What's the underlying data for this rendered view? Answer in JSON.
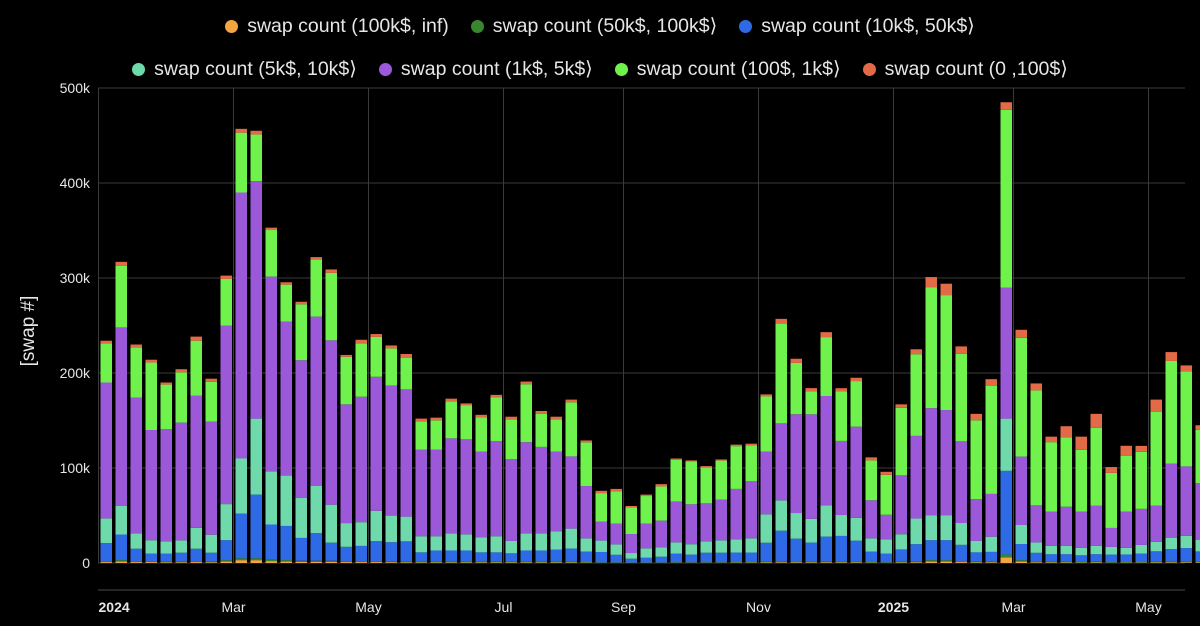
{
  "chart_data": {
    "type": "bar",
    "stacked": true,
    "ylabel": "[swap #]",
    "ylim": [
      0,
      500000
    ],
    "yticks": [
      0,
      100000,
      200000,
      300000,
      400000,
      500000
    ],
    "ytick_labels": [
      "0",
      "100k",
      "200k",
      "300k",
      "400k",
      "500k"
    ],
    "xticks": [
      {
        "label": "2024",
        "bold": true,
        "after_bar": 0
      },
      {
        "label": "Mar",
        "bold": false,
        "after_bar": 9
      },
      {
        "label": "May",
        "bold": false,
        "after_bar": 18
      },
      {
        "label": "Jul",
        "bold": false,
        "after_bar": 27
      },
      {
        "label": "Sep",
        "bold": false,
        "after_bar": 35
      },
      {
        "label": "Nov",
        "bold": false,
        "after_bar": 44
      },
      {
        "label": "2025",
        "bold": true,
        "after_bar": 53
      },
      {
        "label": "Mar",
        "bold": false,
        "after_bar": 61
      },
      {
        "label": "May",
        "bold": false,
        "after_bar": 70
      }
    ],
    "grid": true,
    "legend_position": "top",
    "series": [
      {
        "name": "swap count (100k$, inf)",
        "color": "#f5a540"
      },
      {
        "name": "swap count (50k$, 100k$⟩",
        "color": "#37872d"
      },
      {
        "name": "swap count (10k$, 50k$⟩",
        "color": "#2e6ae5"
      },
      {
        "name": "swap count (5k$, 10k$⟩",
        "color": "#6ed9ab"
      },
      {
        "name": "swap count (1k$, 5k$⟩",
        "color": "#9b59d9"
      },
      {
        "name": "swap count (100$, 1k$⟩",
        "color": "#70f24d"
      },
      {
        "name": "swap count (0 ,100$⟩",
        "color": "#e26a47"
      }
    ],
    "totals": [
      234000,
      317000,
      230000,
      214000,
      190000,
      204000,
      238000,
      194000,
      303000,
      457000,
      455000,
      353000,
      296000,
      275000,
      322000,
      308000,
      219000,
      235000,
      241000,
      230000,
      220000,
      152000,
      153000,
      173000,
      169000,
      156000,
      177000,
      154000,
      191000,
      160000,
      154000,
      172000,
      130000,
      76000,
      78000,
      61000,
      73000,
      84000,
      111000,
      109000,
      103000,
      110000,
      126000,
      127000,
      181000,
      259000,
      216000,
      186000,
      243000,
      185000,
      196000,
      112000,
      97000,
      168000,
      229000,
      302000,
      294000,
      235000,
      158000,
      197000,
      485000,
      246000,
      194000,
      141000,
      148000,
      133000,
      157000,
      102000,
      124000,
      124000,
      173000,
      222000,
      212000,
      146000,
      134000,
      61000
    ],
    "layer_values": {
      "100k_inf": [
        1000,
        1500,
        1000,
        1000,
        800,
        800,
        1000,
        800,
        1500,
        3000,
        3000,
        2000,
        1500,
        1200,
        1200,
        1200,
        1000,
        1000,
        1000,
        900,
        800,
        500,
        500,
        500,
        500,
        500,
        500,
        500,
        500,
        500,
        500,
        500,
        400,
        200,
        200,
        200,
        200,
        200,
        300,
        300,
        300,
        300,
        400,
        400,
        500,
        800,
        600,
        600,
        800,
        600,
        600,
        400,
        300,
        500,
        800,
        1500,
        1500,
        1000,
        500,
        800,
        6000,
        1500,
        800,
        500,
        500,
        400,
        500,
        300,
        400,
        400,
        500,
        700,
        700,
        500,
        400,
        200
      ],
      "50k_100k": [
        1000,
        1500,
        1000,
        1000,
        1000,
        1000,
        1000,
        1000,
        1500,
        2000,
        2000,
        1500,
        1500,
        1200,
        1200,
        1200,
        1000,
        1000,
        1000,
        1000,
        1000,
        700,
        700,
        700,
        700,
        700,
        700,
        700,
        700,
        700,
        700,
        700,
        600,
        400,
        400,
        300,
        300,
        400,
        500,
        500,
        500,
        500,
        600,
        600,
        800,
        1200,
        1000,
        900,
        1000,
        900,
        900,
        600,
        500,
        800,
        1000,
        1500,
        1500,
        1100,
        700,
        900,
        3000,
        1500,
        900,
        700,
        700,
        700,
        700,
        600,
        600,
        600,
        800,
        1000,
        1000,
        700,
        600,
        300
      ],
      "10k_50k": [
        19000,
        27000,
        13000,
        8000,
        8000,
        9000,
        13000,
        9000,
        21000,
        47000,
        67000,
        37000,
        36000,
        24000,
        29000,
        19000,
        15000,
        16000,
        21000,
        20000,
        21000,
        10000,
        12000,
        12000,
        12000,
        10000,
        10000,
        9000,
        12000,
        12000,
        13000,
        14000,
        11000,
        11000,
        8000,
        4000,
        5000,
        6000,
        9000,
        8000,
        10000,
        10000,
        10000,
        10000,
        20000,
        32000,
        24000,
        20000,
        26000,
        27000,
        22000,
        11000,
        9000,
        13000,
        18000,
        21000,
        21000,
        17000,
        10000,
        10000,
        88000,
        17000,
        9000,
        8000,
        8000,
        7000,
        8000,
        8000,
        8000,
        9000,
        11000,
        13000,
        14000,
        11000,
        8000,
        3000
      ],
      "5k_10k": [
        26000,
        30000,
        16000,
        14000,
        13000,
        13000,
        22000,
        19000,
        38000,
        58000,
        80000,
        56000,
        53000,
        42000,
        50000,
        40000,
        25000,
        25000,
        32000,
        28000,
        26000,
        17000,
        15000,
        18000,
        17000,
        16000,
        17000,
        13000,
        18000,
        18000,
        19000,
        21000,
        14000,
        12000,
        11000,
        6000,
        10000,
        10000,
        12000,
        11000,
        12000,
        13000,
        14000,
        15000,
        30000,
        32000,
        27000,
        25000,
        33000,
        22000,
        24000,
        14000,
        15000,
        16000,
        27000,
        26000,
        26000,
        23000,
        12000,
        16000,
        55000,
        20000,
        11000,
        9000,
        9000,
        8000,
        9000,
        8000,
        7000,
        9000,
        10000,
        12000,
        13000,
        12000,
        10000,
        3000
      ],
      "1k_5k": [
        143000,
        188000,
        143000,
        116000,
        118000,
        124000,
        139000,
        119000,
        188000,
        280000,
        250000,
        205000,
        162000,
        145000,
        178000,
        173000,
        125000,
        132000,
        141000,
        137000,
        134000,
        91000,
        91000,
        100000,
        100000,
        90000,
        100000,
        86000,
        96000,
        91000,
        84000,
        76000,
        55000,
        20000,
        22000,
        20000,
        26000,
        28000,
        43000,
        42000,
        40000,
        43000,
        53000,
        60000,
        66000,
        81000,
        104000,
        110000,
        115000,
        78000,
        96000,
        40000,
        26000,
        62000,
        87000,
        113000,
        111000,
        86000,
        44000,
        45000,
        138000,
        72000,
        39000,
        36000,
        41000,
        38000,
        42000,
        20000,
        38000,
        38000,
        38000,
        78000,
        73000,
        60000,
        64000,
        15000
      ],
      "100_1k": [
        41000,
        65000,
        53000,
        71000,
        47000,
        53000,
        58000,
        42000,
        49000,
        63000,
        49000,
        49000,
        39000,
        59000,
        60000,
        71000,
        50000,
        56000,
        42000,
        39000,
        33000,
        30000,
        31000,
        39000,
        36000,
        36000,
        46000,
        42000,
        61000,
        35000,
        34000,
        57000,
        46000,
        30000,
        34000,
        28000,
        29000,
        36000,
        44000,
        45000,
        38000,
        41000,
        45000,
        38000,
        58000,
        105000,
        54000,
        24000,
        62000,
        52000,
        48000,
        42000,
        42000,
        71000,
        86000,
        127000,
        121000,
        92000,
        83000,
        114000,
        187000,
        125000,
        121000,
        73000,
        73000,
        65000,
        82000,
        58000,
        59000,
        60000,
        99000,
        108000,
        100000,
        56000,
        46000,
        37000
      ],
      "0_100": [
        3000,
        4000,
        3000,
        3000,
        2200,
        3200,
        4300,
        3200,
        3500,
        4000,
        4000,
        2500,
        2500,
        2600,
        2600,
        3600,
        2000,
        4000,
        3000,
        3100,
        4200,
        2800,
        2800,
        2800,
        1800,
        2800,
        2800,
        2800,
        2800,
        2800,
        2800,
        2800,
        2000,
        2400,
        2400,
        1500,
        1500,
        2400,
        1200,
        1200,
        1200,
        1200,
        1600,
        1600,
        2200,
        5000,
        4400,
        3600,
        5200,
        3500,
        3500,
        3200,
        3200,
        3700,
        5200,
        11000,
        12000,
        7900,
        6800,
        6800,
        8000,
        8500,
        7300,
        5800,
        11800,
        13900,
        14800,
        6100,
        10400,
        6300,
        12700,
        9300,
        6300,
        4800,
        4600,
        2200
      ]
    }
  }
}
